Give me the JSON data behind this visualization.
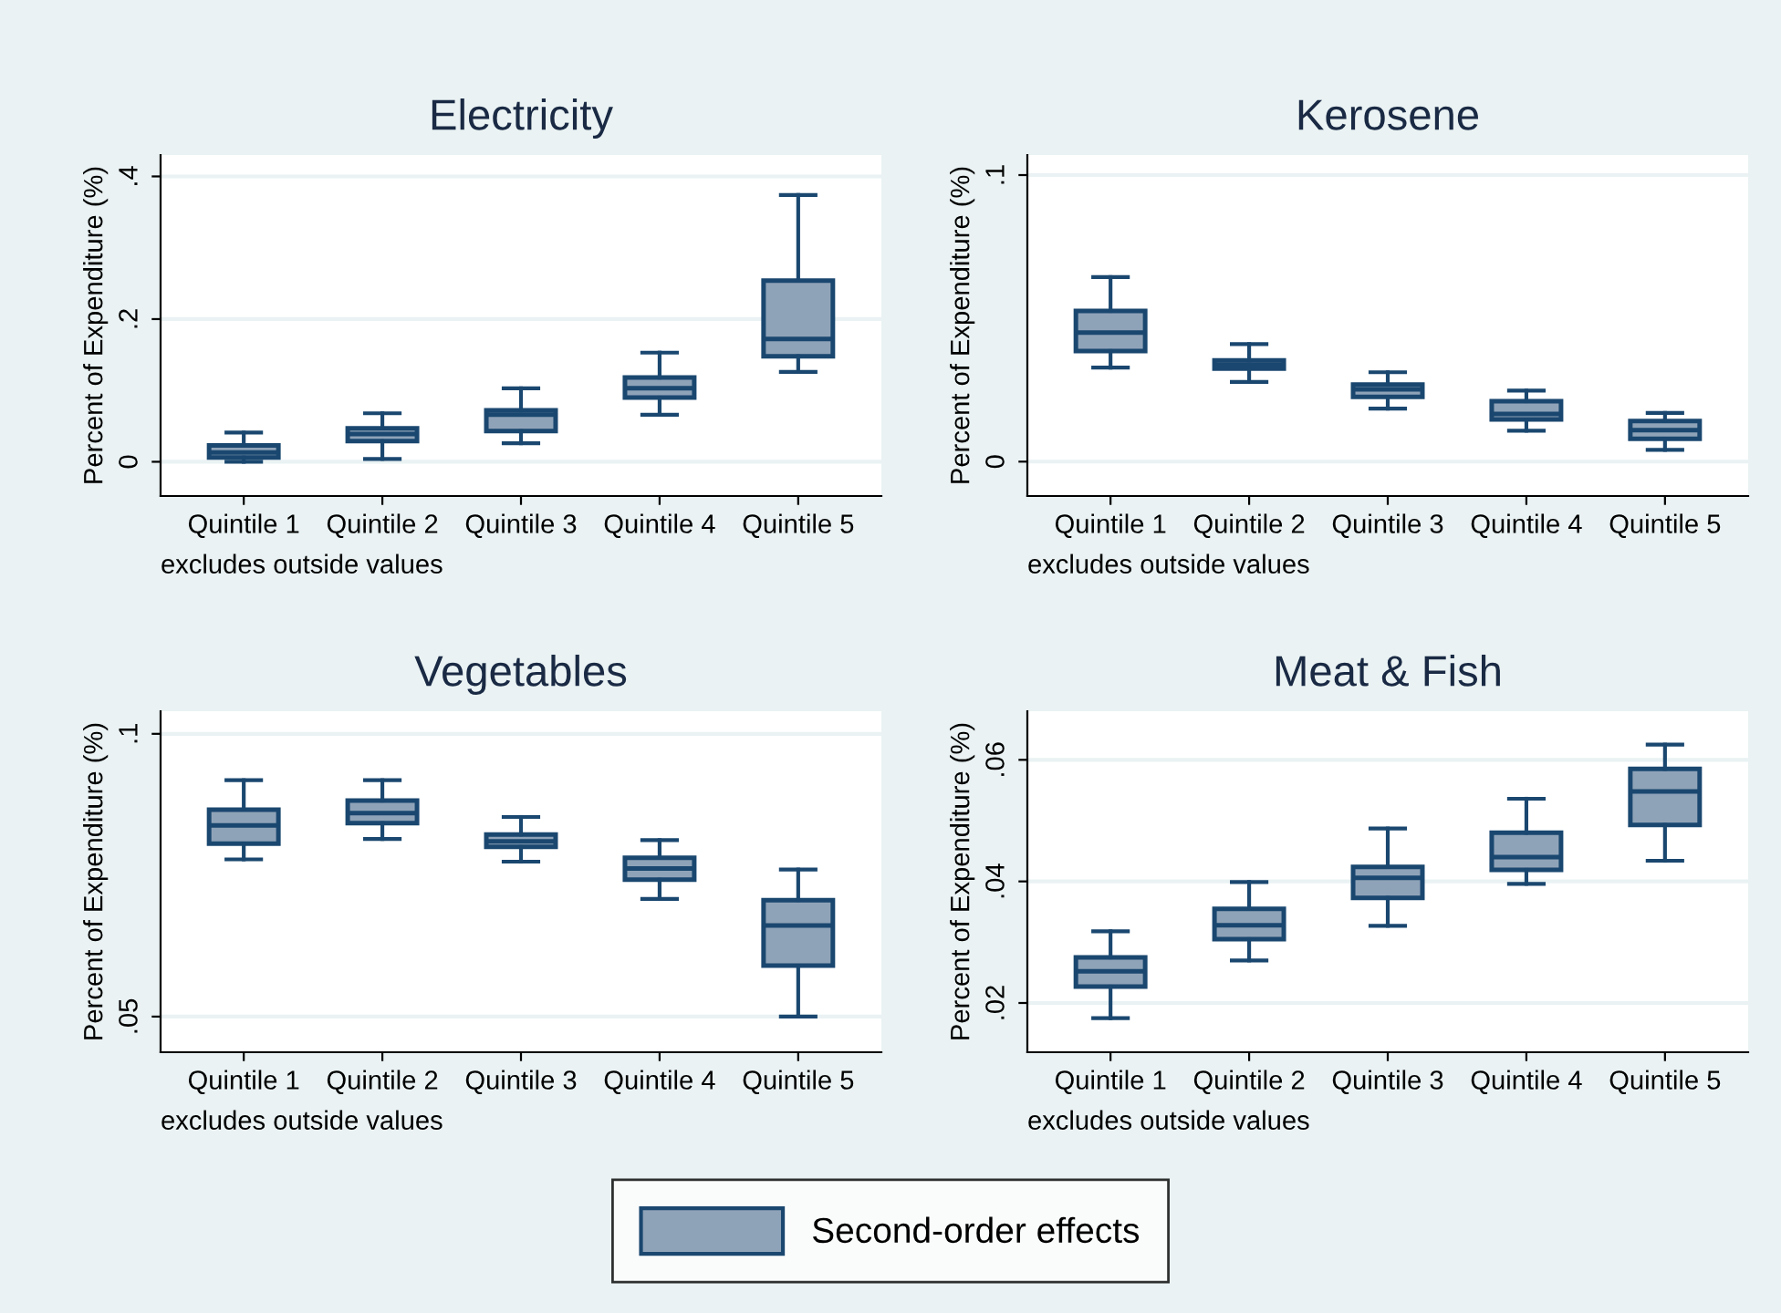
{
  "chart_data": [
    {
      "type": "box",
      "title": "Electricity",
      "ylabel": "Percent of Expenditure (%)",
      "categories": [
        "Quintile 1",
        "Quintile 2",
        "Quintile 3",
        "Quintile 4",
        "Quintile 5"
      ],
      "ylim": [
        -0.048,
        0.43
      ],
      "yticks": [
        {
          "value": 0,
          "label": "0"
        },
        {
          "value": 0.2,
          "label": ".2"
        },
        {
          "value": 0.4,
          "label": ".4"
        }
      ],
      "grid": "y",
      "annotations": [
        "excludes outside values"
      ],
      "series": [
        {
          "color": "#8fa3b8",
          "boxes": [
            {
              "low": 0.0,
              "q1": 0.006,
              "median": 0.013,
              "q3": 0.023,
              "high": 0.041
            },
            {
              "low": 0.004,
              "q1": 0.029,
              "median": 0.039,
              "q3": 0.047,
              "high": 0.068
            },
            {
              "low": 0.026,
              "q1": 0.043,
              "median": 0.066,
              "q3": 0.072,
              "high": 0.103
            },
            {
              "low": 0.066,
              "q1": 0.09,
              "median": 0.103,
              "q3": 0.118,
              "high": 0.153
            },
            {
              "low": 0.126,
              "q1": 0.148,
              "median": 0.172,
              "q3": 0.254,
              "high": 0.374
            }
          ]
        }
      ]
    },
    {
      "type": "box",
      "title": "Kerosene",
      "ylabel": "Percent of Expenditure (%)",
      "categories": [
        "Quintile 1",
        "Quintile 2",
        "Quintile 3",
        "Quintile 4",
        "Quintile 5"
      ],
      "ylim": [
        -0.012,
        0.107
      ],
      "yticks": [
        {
          "value": 0,
          "label": "0"
        },
        {
          "value": 0.1,
          "label": ".1"
        }
      ],
      "grid": "y",
      "annotations": [
        "excludes outside values"
      ],
      "series": [
        {
          "color": "#8fa3b8",
          "boxes": [
            {
              "low": 0.0328,
              "q1": 0.0386,
              "median": 0.045,
              "q3": 0.0526,
              "high": 0.0644
            },
            {
              "low": 0.0278,
              "q1": 0.0325,
              "median": 0.0338,
              "q3": 0.0353,
              "high": 0.041
            },
            {
              "low": 0.0185,
              "q1": 0.0226,
              "median": 0.0252,
              "q3": 0.0269,
              "high": 0.0312
            },
            {
              "low": 0.0108,
              "q1": 0.0147,
              "median": 0.0166,
              "q3": 0.0211,
              "high": 0.0248
            },
            {
              "low": 0.0041,
              "q1": 0.008,
              "median": 0.011,
              "q3": 0.0142,
              "high": 0.017
            }
          ]
        }
      ]
    },
    {
      "type": "box",
      "title": "Vegetables",
      "ylabel": "Percent of Expenditure (%)",
      "categories": [
        "Quintile 1",
        "Quintile 2",
        "Quintile 3",
        "Quintile 4",
        "Quintile 5"
      ],
      "ylim": [
        0.0437,
        0.104
      ],
      "yticks": [
        {
          "value": 0.05,
          "label": ".05"
        },
        {
          "value": 0.1,
          "label": ".1"
        }
      ],
      "grid": "y",
      "annotations": [
        "excludes outside values"
      ],
      "series": [
        {
          "color": "#8fa3b8",
          "boxes": [
            {
              "low": 0.0778,
              "q1": 0.0806,
              "median": 0.0838,
              "q3": 0.0866,
              "high": 0.0918
            },
            {
              "low": 0.0814,
              "q1": 0.0842,
              "median": 0.086,
              "q3": 0.0882,
              "high": 0.0918
            },
            {
              "low": 0.0774,
              "q1": 0.08,
              "median": 0.081,
              "q3": 0.0822,
              "high": 0.0853
            },
            {
              "low": 0.0708,
              "q1": 0.0742,
              "median": 0.0762,
              "q3": 0.0781,
              "high": 0.0812
            },
            {
              "low": 0.05,
              "q1": 0.059,
              "median": 0.0661,
              "q3": 0.0706,
              "high": 0.076
            }
          ]
        }
      ]
    },
    {
      "type": "box",
      "title": "Meat & Fish",
      "ylabel": "Percent of Expenditure (%)",
      "categories": [
        "Quintile 1",
        "Quintile 2",
        "Quintile 3",
        "Quintile 4",
        "Quintile 5"
      ],
      "ylim": [
        0.0119,
        0.068
      ],
      "yticks": [
        {
          "value": 0.02,
          "label": ".02"
        },
        {
          "value": 0.04,
          "label": ".04"
        },
        {
          "value": 0.06,
          "label": ".06"
        }
      ],
      "grid": "y",
      "annotations": [
        "excludes outside values"
      ],
      "legend": "bottom",
      "series": [
        {
          "name": "Second-order effects",
          "color": "#8fa3b8",
          "boxes": [
            {
              "low": 0.0175,
              "q1": 0.0227,
              "median": 0.0252,
              "q3": 0.0275,
              "high": 0.0318
            },
            {
              "low": 0.027,
              "q1": 0.0305,
              "median": 0.0328,
              "q3": 0.0355,
              "high": 0.0399
            },
            {
              "low": 0.0327,
              "q1": 0.0373,
              "median": 0.0406,
              "q3": 0.0424,
              "high": 0.0487
            },
            {
              "low": 0.0396,
              "q1": 0.0419,
              "median": 0.044,
              "q3": 0.048,
              "high": 0.0536
            },
            {
              "low": 0.0434,
              "q1": 0.0493,
              "median": 0.0548,
              "q3": 0.0585,
              "high": 0.0625
            }
          ]
        }
      ]
    }
  ]
}
